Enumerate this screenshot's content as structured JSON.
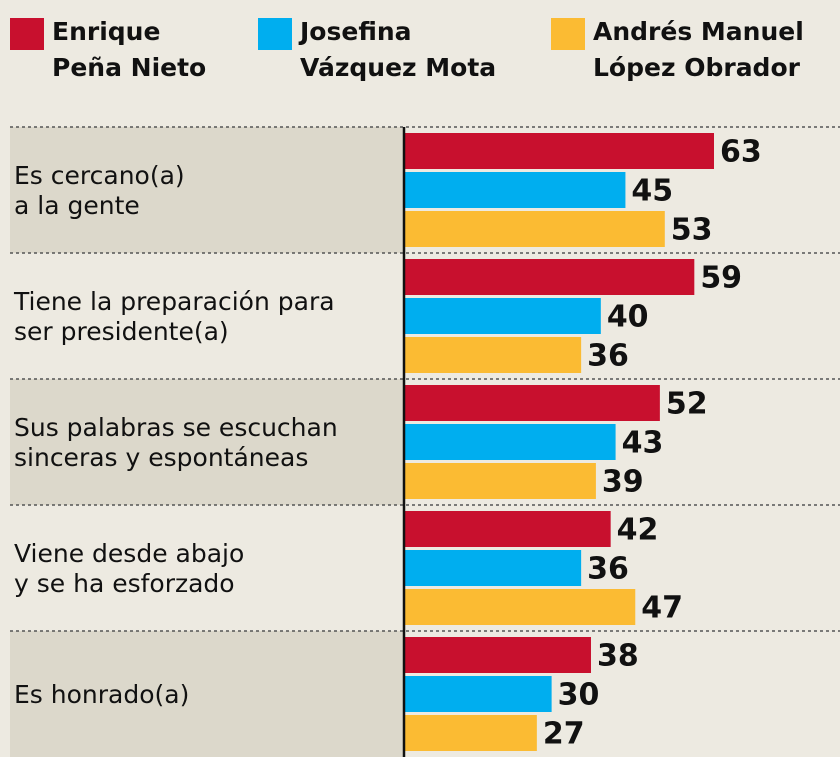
{
  "chart_data": {
    "type": "bar",
    "orientation": "horizontal",
    "categories": [
      [
        "Es cercano(a)",
        "a la gente"
      ],
      [
        "Tiene la preparación para",
        "ser presidente(a)"
      ],
      [
        "Sus palabras se escuchan",
        "sinceras y espontáneas"
      ],
      [
        "Viene desde abajo",
        "y se ha esforzado"
      ],
      [
        "Es honrado(a)"
      ]
    ],
    "series": [
      {
        "name": "Enrique Peña Nieto",
        "color": "#c8102e",
        "values": [
          63,
          59,
          52,
          42,
          38
        ]
      },
      {
        "name": "Josefina Vázquez Mota",
        "color": "#00aeef",
        "values": [
          45,
          40,
          43,
          36,
          30
        ]
      },
      {
        "name": "Andrés Manuel López Obrador",
        "color": "#fbbb33",
        "values": [
          53,
          36,
          39,
          47,
          27
        ]
      }
    ]
  }
}
